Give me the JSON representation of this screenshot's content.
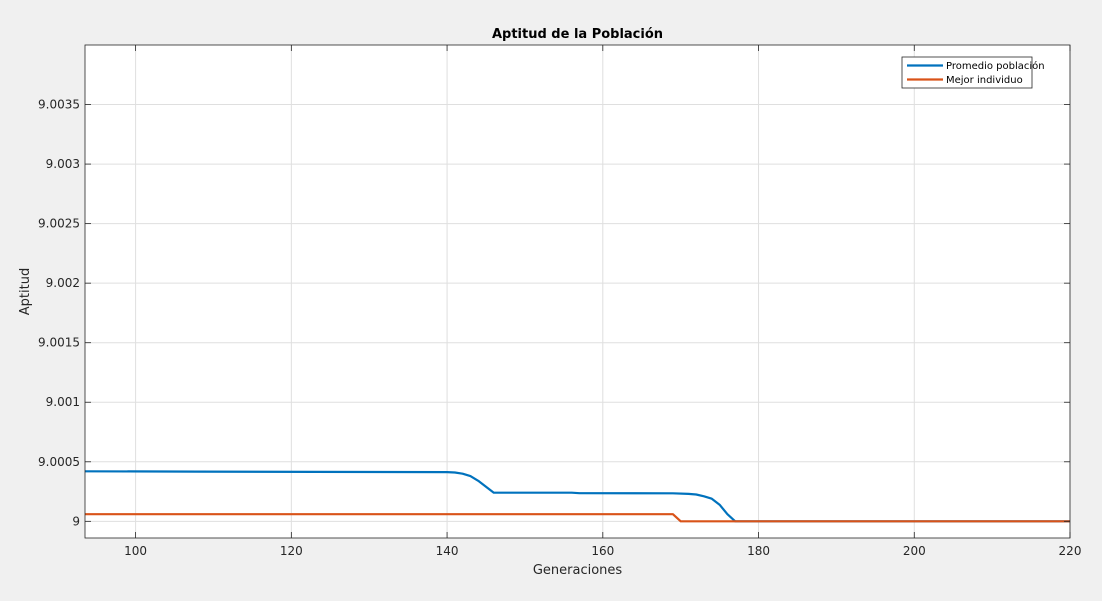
{
  "chart_data": {
    "type": "line",
    "title": "Aptitud de la Población",
    "xlabel": "Generaciones",
    "ylabel": "Aptitud",
    "xlim": [
      93.5,
      220
    ],
    "ylim": [
      8.99986,
      9.004
    ],
    "xticks": [
      100,
      120,
      140,
      160,
      180,
      200,
      220
    ],
    "xtick_labels": [
      "100",
      "120",
      "140",
      "160",
      "180",
      "200",
      "220"
    ],
    "yticks": [
      9,
      9.0005,
      9.001,
      9.0015,
      9.002,
      9.0025,
      9.003,
      9.0035
    ],
    "ytick_labels": [
      "9",
      "9.0005",
      "9.001",
      "9.0015",
      "9.002",
      "9.0025",
      "9.003",
      "9.0035"
    ],
    "grid": true,
    "legend_position": "top-right",
    "series": [
      {
        "name": "Promedio población",
        "color": "#0072BD",
        "x": [
          93.5,
          108,
          123,
          140,
          141,
          142,
          143,
          144,
          145,
          146,
          156,
          157,
          169,
          171,
          172,
          173,
          174,
          175,
          176,
          177,
          178,
          220
        ],
        "y": [
          9.00042,
          9.000418,
          9.000415,
          9.000413,
          9.00041,
          9.0004,
          9.00038,
          9.00034,
          9.00029,
          9.00024,
          9.00024,
          9.000236,
          9.000235,
          9.00023,
          9.000225,
          9.00021,
          9.00019,
          9.00014,
          9.00006,
          9.0,
          9.0,
          9.0
        ]
      },
      {
        "name": "Mejor individuo",
        "color": "#D95319",
        "x": [
          93.5,
          169,
          170,
          220
        ],
        "y": [
          9.00006,
          9.00006,
          9.0,
          9.0
        ]
      }
    ]
  }
}
